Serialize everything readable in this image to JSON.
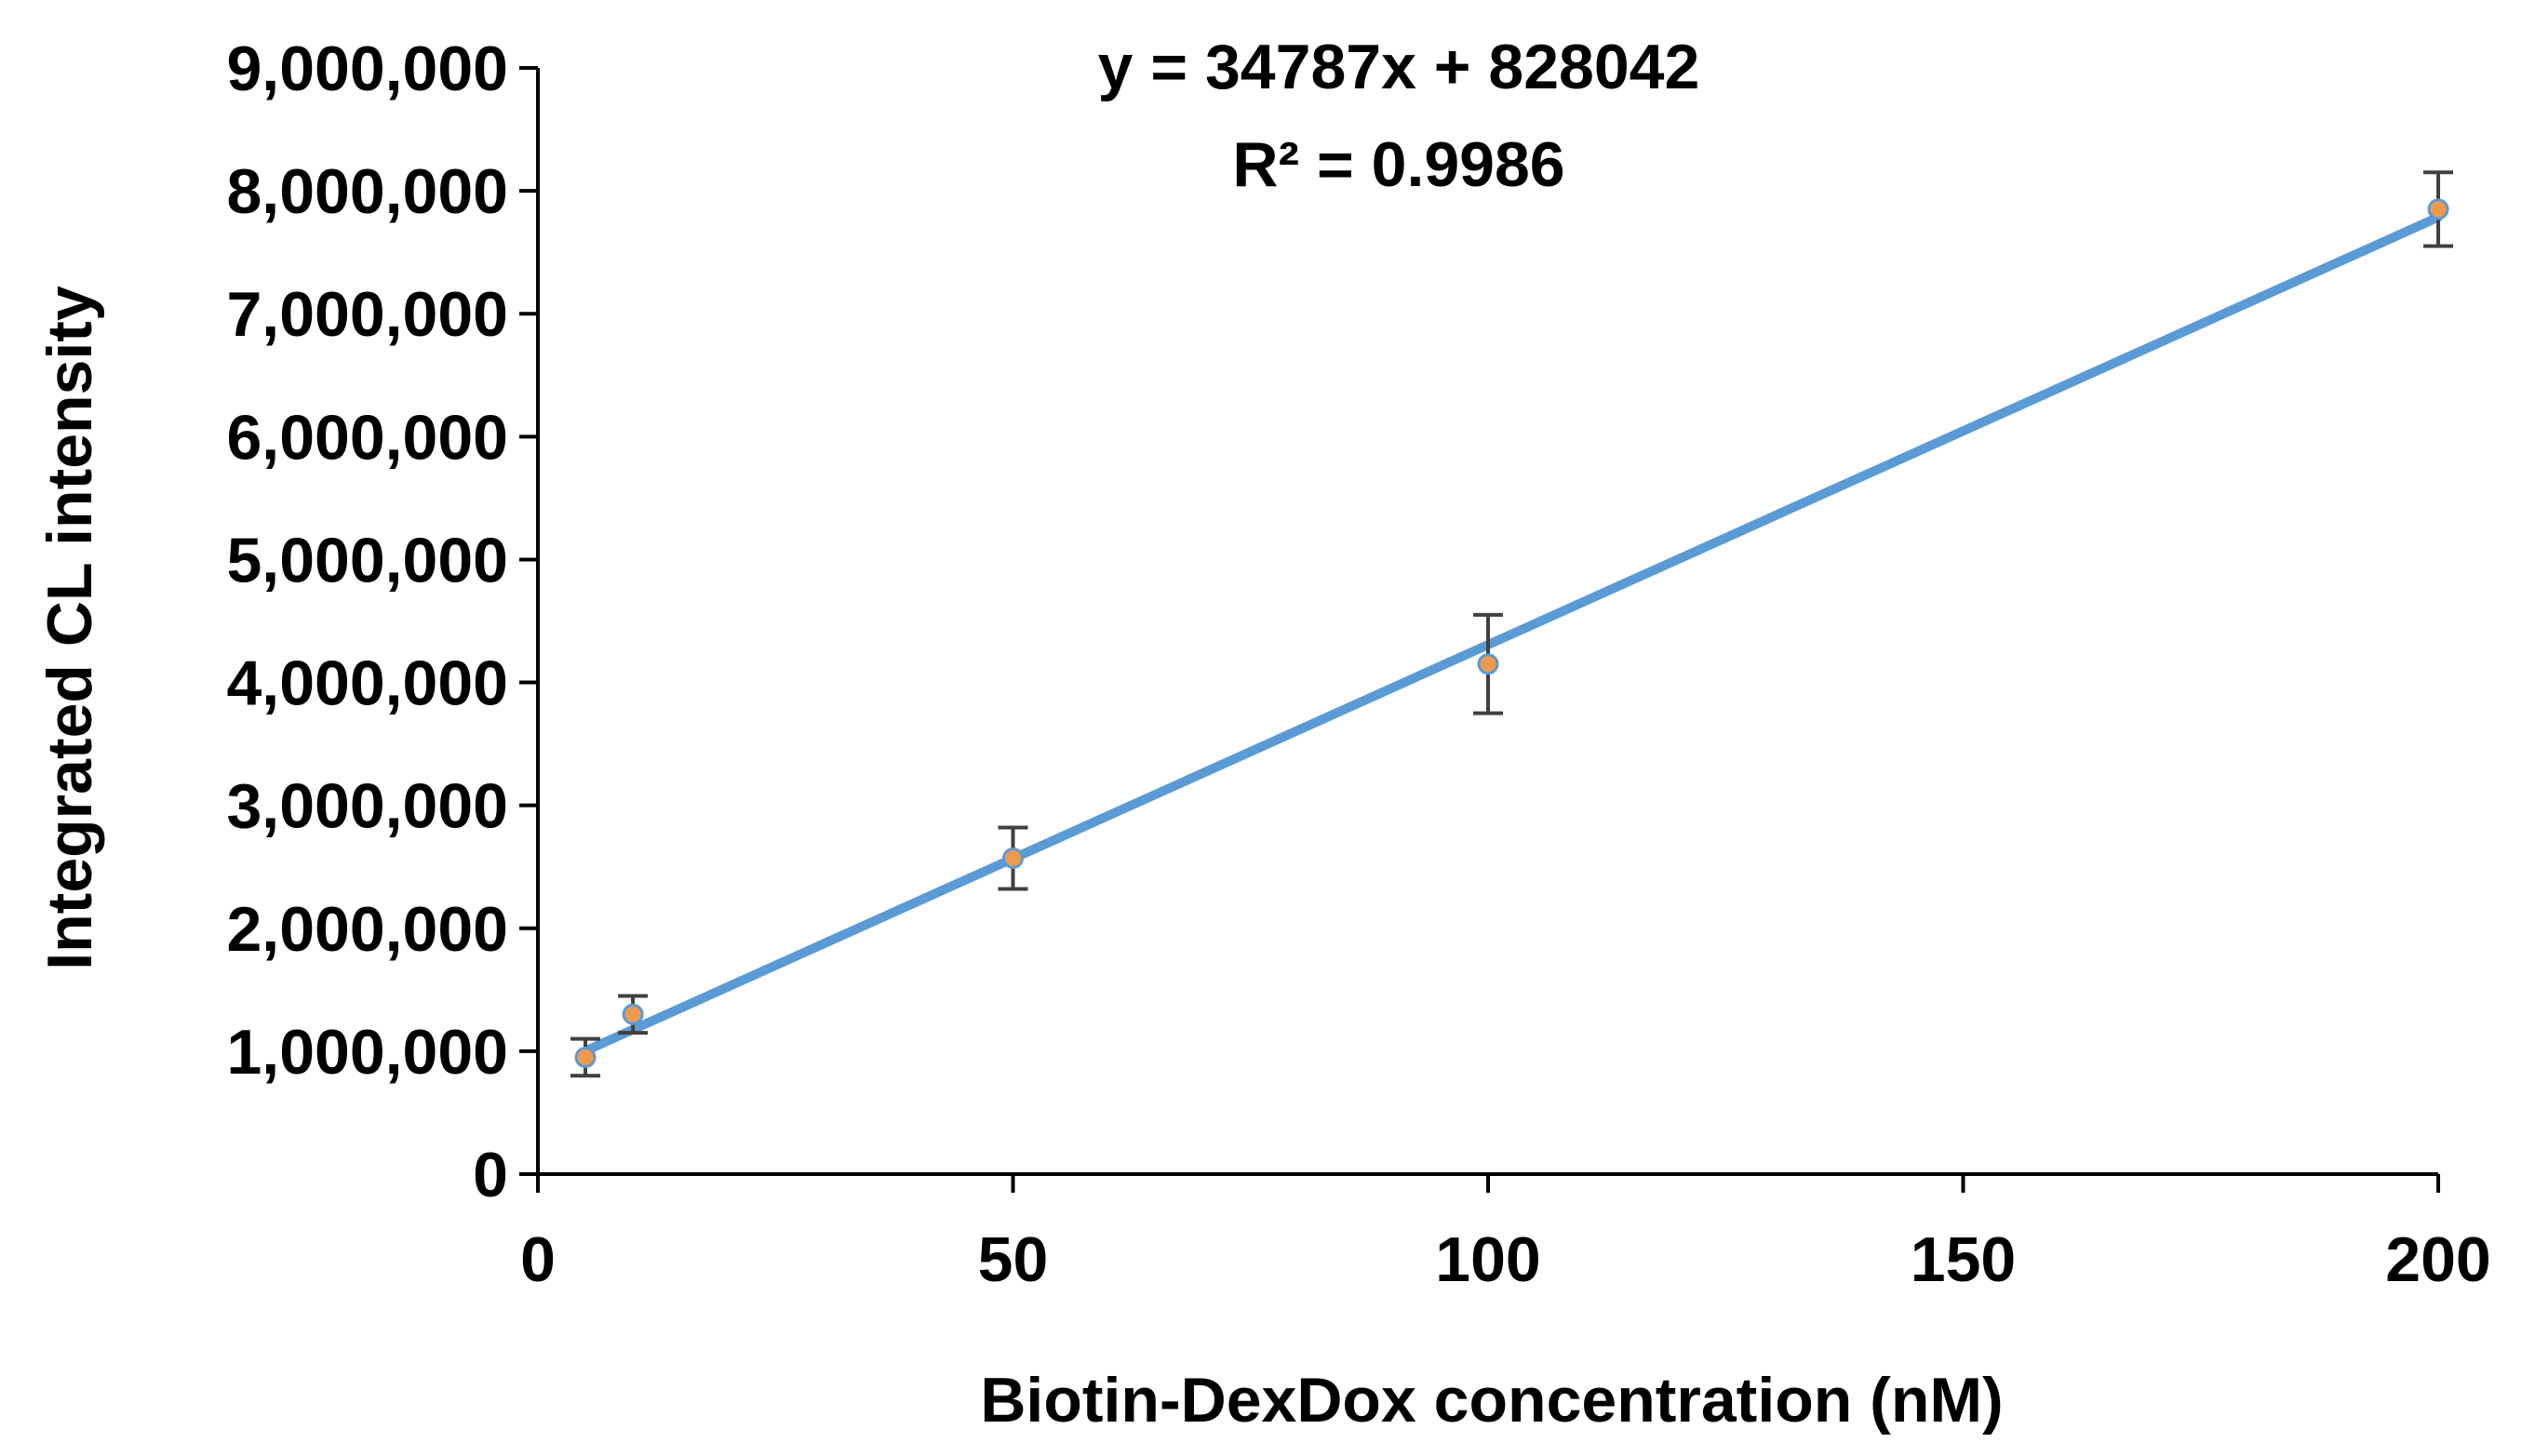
{
  "chart_data": {
    "type": "scatter",
    "xlabel": "Biotin-DexDox concentration  (nM)",
    "ylabel": "Integrated CL intensity",
    "xlim": [
      0,
      200
    ],
    "ylim": [
      0,
      9000000
    ],
    "x_ticks": [
      0,
      50,
      100,
      150,
      200
    ],
    "y_ticks": [
      0,
      1000000,
      2000000,
      3000000,
      4000000,
      5000000,
      6000000,
      7000000,
      8000000,
      9000000
    ],
    "x_tick_labels": [
      "0",
      "50",
      "100",
      "150",
      "200"
    ],
    "y_tick_labels": [
      "0",
      "1,000,000",
      "2,000,000",
      "3,000,000",
      "4,000,000",
      "5,000,000",
      "6,000,000",
      "7,000,000",
      "8,000,000",
      "9,000,000"
    ],
    "grid": false,
    "series": [
      {
        "x": [
          5,
          10,
          50,
          100,
          200
        ],
        "y": [
          950000,
          1300000,
          2570000,
          4150000,
          7850000
        ],
        "error": [
          150000,
          150000,
          250000,
          400000,
          300000
        ]
      }
    ],
    "trendline": {
      "slope": 34787,
      "intercept": 828042
    },
    "annotations": {
      "equation": "y = 34787x + 828042",
      "r2": "R² = 0.9986"
    },
    "colors": {
      "line": "#5b9bd5",
      "marker": "#ed9a4f",
      "error_bar": "#404040",
      "axis": "#000000"
    }
  }
}
